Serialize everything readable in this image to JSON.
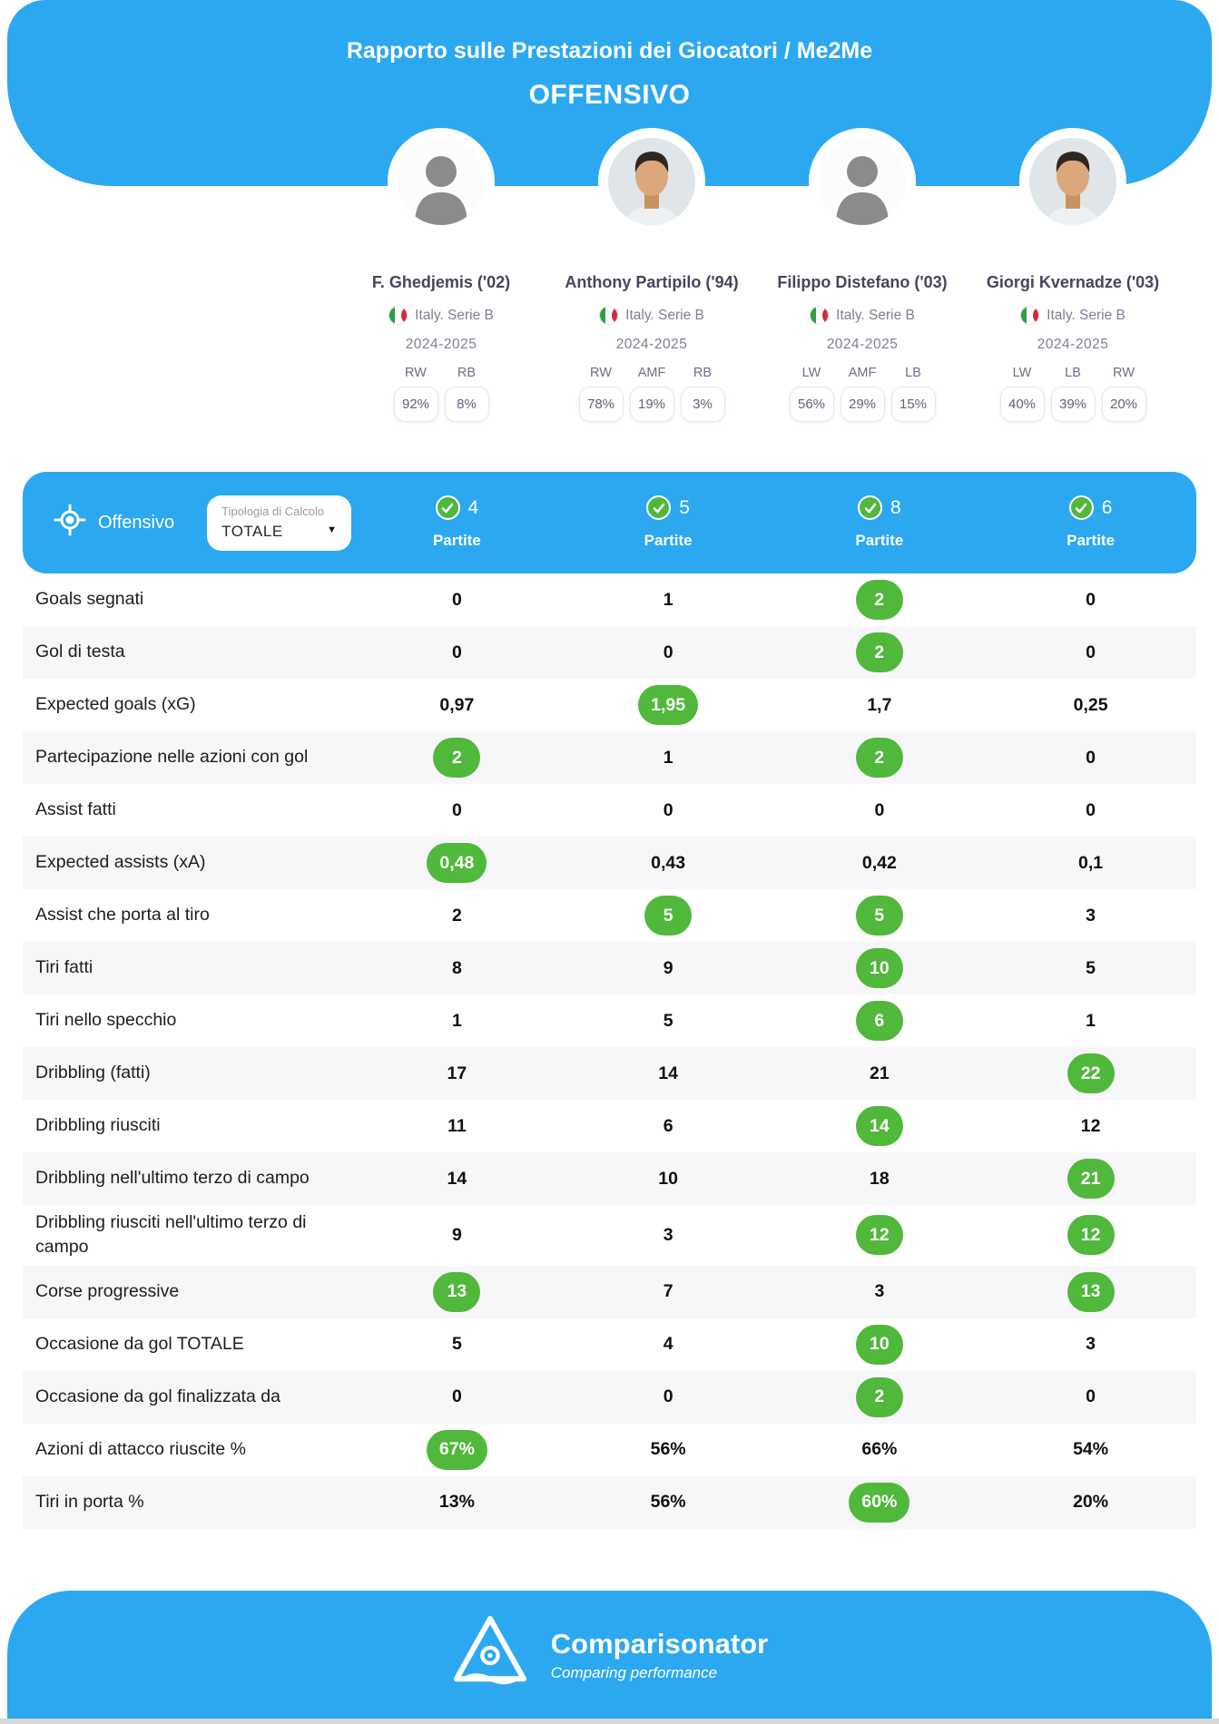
{
  "colors": {
    "accent_blue": "#2BA8F0",
    "highlight_green": "#50B83B"
  },
  "header": {
    "title": "Rapporto sulle Prestazioni dei Giocatori / Me2Me",
    "subtitle": "OFFENSIVO"
  },
  "players": [
    {
      "name": "F. Ghedjemis ('02)",
      "league": "Italy. Serie B",
      "season": "2024-2025",
      "avatar": "silhouette",
      "matches": "4",
      "positions": [
        {
          "label": "RW",
          "pct": "92%"
        },
        {
          "label": "RB",
          "pct": "8%"
        }
      ]
    },
    {
      "name": "Anthony Partipilo ('94)",
      "league": "Italy. Serie B",
      "season": "2024-2025",
      "avatar": "photo",
      "matches": "5",
      "positions": [
        {
          "label": "RW",
          "pct": "78%"
        },
        {
          "label": "AMF",
          "pct": "19%"
        },
        {
          "label": "RB",
          "pct": "3%"
        }
      ]
    },
    {
      "name": "Filippo Distefano ('03)",
      "league": "Italy. Serie B",
      "season": "2024-2025",
      "avatar": "silhouette",
      "matches": "8",
      "positions": [
        {
          "label": "LW",
          "pct": "56%"
        },
        {
          "label": "AMF",
          "pct": "29%"
        },
        {
          "label": "LB",
          "pct": "15%"
        }
      ]
    },
    {
      "name": "Giorgi Kvernadze ('03)",
      "league": "Italy. Serie B",
      "season": "2024-2025",
      "avatar": "photo",
      "matches": "6",
      "positions": [
        {
          "label": "LW",
          "pct": "40%"
        },
        {
          "label": "LB",
          "pct": "39%"
        },
        {
          "label": "RW",
          "pct": "20%"
        }
      ]
    }
  ],
  "table": {
    "section_label": "Offensivo",
    "dropdown": {
      "label": "Tipologia di Calcolo",
      "value": "TOTALE"
    },
    "matches_label": "Partite",
    "rows": [
      {
        "label": "Goals segnati",
        "values": [
          "0",
          "1",
          "2",
          "0"
        ],
        "highlight": [
          2
        ]
      },
      {
        "label": "Gol di testa",
        "values": [
          "0",
          "0",
          "2",
          "0"
        ],
        "highlight": [
          2
        ]
      },
      {
        "label": "Expected goals (xG)",
        "values": [
          "0,97",
          "1,95",
          "1,7",
          "0,25"
        ],
        "highlight": [
          1
        ]
      },
      {
        "label": "Partecipazione nelle azioni con gol",
        "values": [
          "2",
          "1",
          "2",
          "0"
        ],
        "highlight": [
          0,
          2
        ]
      },
      {
        "label": "Assist fatti",
        "values": [
          "0",
          "0",
          "0",
          "0"
        ],
        "highlight": []
      },
      {
        "label": "Expected assists (xA)",
        "values": [
          "0,48",
          "0,43",
          "0,42",
          "0,1"
        ],
        "highlight": [
          0
        ]
      },
      {
        "label": "Assist che porta al tiro",
        "values": [
          "2",
          "5",
          "5",
          "3"
        ],
        "highlight": [
          1,
          2
        ]
      },
      {
        "label": "Tiri fatti",
        "values": [
          "8",
          "9",
          "10",
          "5"
        ],
        "highlight": [
          2
        ]
      },
      {
        "label": "Tiri nello specchio",
        "values": [
          "1",
          "5",
          "6",
          "1"
        ],
        "highlight": [
          2
        ]
      },
      {
        "label": "Dribbling (fatti)",
        "values": [
          "17",
          "14",
          "21",
          "22"
        ],
        "highlight": [
          3
        ]
      },
      {
        "label": "Dribbling riusciti",
        "values": [
          "11",
          "6",
          "14",
          "12"
        ],
        "highlight": [
          2
        ]
      },
      {
        "label": "Dribbling nell'ultimo terzo di campo",
        "values": [
          "14",
          "10",
          "18",
          "21"
        ],
        "highlight": [
          3
        ]
      },
      {
        "label": "Dribbling riusciti nell'ultimo terzo di campo",
        "values": [
          "9",
          "3",
          "12",
          "12"
        ],
        "highlight": [
          2,
          3
        ]
      },
      {
        "label": "Corse progressive",
        "values": [
          "13",
          "7",
          "3",
          "13"
        ],
        "highlight": [
          0,
          3
        ]
      },
      {
        "label": "Occasione da gol TOTALE",
        "values": [
          "5",
          "4",
          "10",
          "3"
        ],
        "highlight": [
          2
        ]
      },
      {
        "label": "Occasione da gol finalizzata da",
        "values": [
          "0",
          "0",
          "2",
          "0"
        ],
        "highlight": [
          2
        ]
      },
      {
        "label": "Azioni di attacco riuscite %",
        "values": [
          "67%",
          "56%",
          "66%",
          "54%"
        ],
        "highlight": [
          0
        ]
      },
      {
        "label": "Tiri in porta %",
        "values": [
          "13%",
          "56%",
          "60%",
          "20%"
        ],
        "highlight": [
          2
        ]
      }
    ]
  },
  "footer": {
    "brand": "Comparisonator",
    "tagline": "Comparing performance"
  }
}
